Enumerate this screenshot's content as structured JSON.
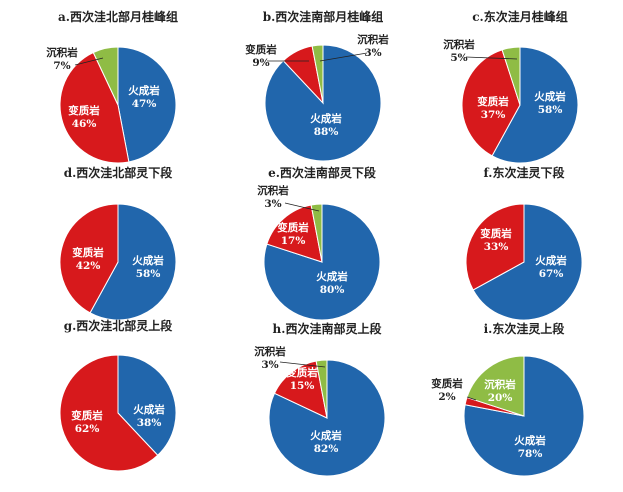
{
  "colors": {
    "igneous": "#2166ac",
    "metamorphic": "#d7191c",
    "sedimentary": "#8fbc45",
    "text_light": "#ffffff",
    "text_dark": "#222222"
  },
  "chart_data": [
    {
      "type": "pie",
      "title": "a.西次洼北部月桂峰组",
      "slices": [
        {
          "label": "火成岩",
          "value": 47,
          "value_text": "47%",
          "category": "igneous"
        },
        {
          "label": "变质岩",
          "value": 46,
          "value_text": "46%",
          "category": "metamorphic"
        },
        {
          "label": "沉积岩",
          "value": 7,
          "value_text": "7%",
          "category": "sedimentary"
        }
      ]
    },
    {
      "type": "pie",
      "title": "b.西次洼南部月桂峰组",
      "slices": [
        {
          "label": "火成岩",
          "value": 88,
          "value_text": "88%",
          "category": "igneous"
        },
        {
          "label": "变质岩",
          "value": 9,
          "value_text": "9%",
          "category": "metamorphic"
        },
        {
          "label": "沉积岩",
          "value": 3,
          "value_text": "3%",
          "category": "sedimentary"
        }
      ]
    },
    {
      "type": "pie",
      "title": "c.东次洼月桂峰组",
      "slices": [
        {
          "label": "火成岩",
          "value": 58,
          "value_text": "58%",
          "category": "igneous"
        },
        {
          "label": "变质岩",
          "value": 37,
          "value_text": "37%",
          "category": "metamorphic"
        },
        {
          "label": "沉积岩",
          "value": 5,
          "value_text": "5%",
          "category": "sedimentary"
        }
      ]
    },
    {
      "type": "pie",
      "title": "d.西次洼北部灵下段",
      "slices": [
        {
          "label": "火成岩",
          "value": 58,
          "value_text": "58%",
          "category": "igneous"
        },
        {
          "label": "变质岩",
          "value": 42,
          "value_text": "42%",
          "category": "metamorphic"
        }
      ]
    },
    {
      "type": "pie",
      "title": "e.西次洼南部灵下段",
      "slices": [
        {
          "label": "火成岩",
          "value": 80,
          "value_text": "80%",
          "category": "igneous"
        },
        {
          "label": "变质岩",
          "value": 17,
          "value_text": "17%",
          "category": "metamorphic"
        },
        {
          "label": "沉积岩",
          "value": 3,
          "value_text": "3%",
          "category": "sedimentary"
        }
      ]
    },
    {
      "type": "pie",
      "title": "f.东次洼灵下段",
      "slices": [
        {
          "label": "火成岩",
          "value": 67,
          "value_text": "67%",
          "category": "igneous"
        },
        {
          "label": "变质岩",
          "value": 33,
          "value_text": "33%",
          "category": "metamorphic"
        }
      ]
    },
    {
      "type": "pie",
      "title": "g.西次洼北部灵上段",
      "slices": [
        {
          "label": "火成岩",
          "value": 38,
          "value_text": "38%",
          "category": "igneous"
        },
        {
          "label": "变质岩",
          "value": 62,
          "value_text": "62%",
          "category": "metamorphic"
        }
      ]
    },
    {
      "type": "pie",
      "title": "h.西次洼南部灵上段",
      "slices": [
        {
          "label": "火成岩",
          "value": 82,
          "value_text": "82%",
          "category": "igneous"
        },
        {
          "label": "变质岩",
          "value": 15,
          "value_text": "15%",
          "category": "metamorphic"
        },
        {
          "label": "沉积岩",
          "value": 3,
          "value_text": "3%",
          "category": "sedimentary"
        }
      ]
    },
    {
      "type": "pie",
      "title": "i.东次洼灵上段",
      "slices": [
        {
          "label": "火成岩",
          "value": 78,
          "value_text": "78%",
          "category": "igneous"
        },
        {
          "label": "变质岩",
          "value": 2,
          "value_text": "2%",
          "category": "metamorphic"
        },
        {
          "label": "沉积岩",
          "value": 20,
          "value_text": "20%",
          "category": "sedimentary"
        }
      ]
    }
  ]
}
